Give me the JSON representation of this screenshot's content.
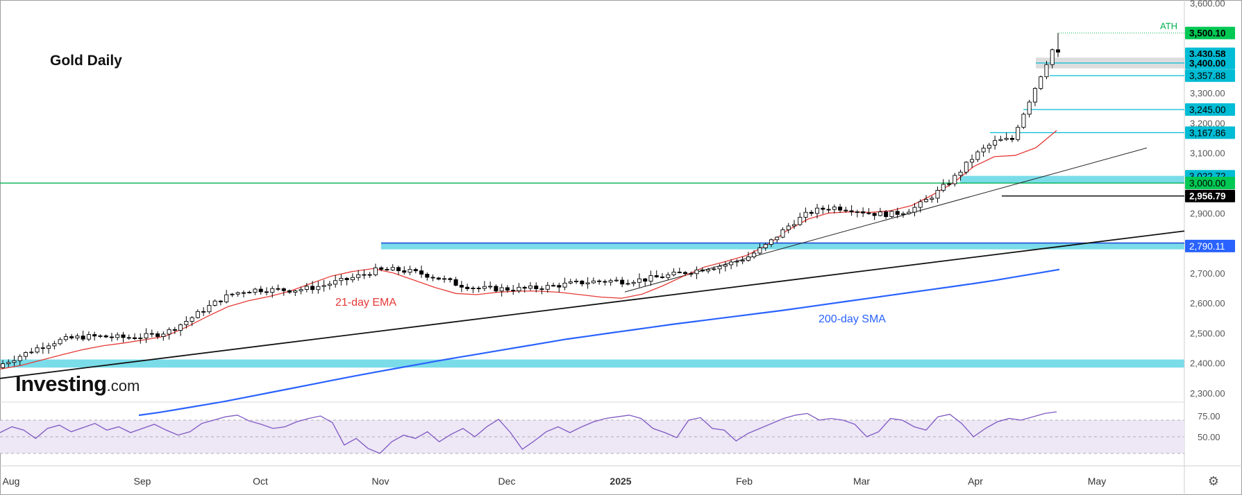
{
  "chart_title": "Gold Daily",
  "watermark": {
    "main": "Investing",
    "sub": ".com"
  },
  "annotations": {
    "ema": "21-day EMA",
    "sma": "200-day SMA",
    "ath": "ATH"
  },
  "colors": {
    "candle_up": "#ffffff",
    "candle_down": "#000000",
    "ema": "#e53935",
    "sma": "#2962ff",
    "rsi": "#7e57c2",
    "rsi_band": "#ede7f6",
    "support_zone": "#4dd0e1",
    "horizontal_3000": "#00b050",
    "label_cyan": "#00bcd4",
    "label_green": "#00c853",
    "label_black": "#000000"
  },
  "chart_data": {
    "type": "candlestick",
    "title": "Gold Daily",
    "x_labels": [
      "Aug",
      "Sep",
      "Oct",
      "Nov",
      "Dec",
      "2025",
      "Feb",
      "Mar",
      "Apr",
      "May"
    ],
    "price_axis": {
      "ticks": [
        "2,300.00",
        "2,400.00",
        "2,500.00",
        "2,600.00",
        "2,700.00",
        "2,800.00",
        "2,900.00",
        "3,000.00",
        "3,100.00",
        "3,200.00",
        "3,300.00",
        "3,400.00",
        "3,500.00",
        "3,600.00"
      ],
      "range": [
        2270,
        3610
      ]
    },
    "rsi_axis": {
      "ticks": [
        "75.00",
        "50.00"
      ],
      "range": [
        15,
        90
      ]
    },
    "price_labels": [
      {
        "value": 3500.1,
        "text": "3,500.10",
        "style": "green"
      },
      {
        "value": 3430.58,
        "text": "3,430.58",
        "style": "cyan"
      },
      {
        "value": 3400.0,
        "text": "3,400.00",
        "style": "cyan"
      },
      {
        "value": 3357.88,
        "text": "3,357.88",
        "style": "cyan"
      },
      {
        "value": 3245.0,
        "text": "3,245.00",
        "style": "cyan"
      },
      {
        "value": 3167.86,
        "text": "3,167.86",
        "style": "cyan"
      },
      {
        "value": 3022.72,
        "text": "3,022.72",
        "style": "cyan"
      },
      {
        "value": 3000.0,
        "text": "3,000.00",
        "style": "green"
      },
      {
        "value": 2956.79,
        "text": "2,956.79",
        "style": "black"
      },
      {
        "value": 2790.11,
        "text": "2,790.11",
        "style": "blue"
      }
    ],
    "zones": [
      {
        "from": 2385,
        "to": 2412
      },
      {
        "from": 2779,
        "to": 2800
      },
      {
        "from": 3000,
        "to": 3024
      },
      {
        "from": 3382,
        "to": 3418
      }
    ],
    "horizontal_line": 3000,
    "ema_21": [
      2380,
      2392,
      2410,
      2428,
      2445,
      2458,
      2467,
      2478,
      2490,
      2520,
      2555,
      2588,
      2608,
      2622,
      2640,
      2665,
      2690,
      2705,
      2715,
      2700,
      2676,
      2652,
      2632,
      2628,
      2636,
      2640,
      2640,
      2636,
      2628,
      2620,
      2616,
      2630,
      2658,
      2690,
      2720,
      2738,
      2758,
      2792,
      2842,
      2880,
      2900,
      2904,
      2902,
      2908,
      2925,
      2960,
      3000,
      3055,
      3088,
      3092,
      3118,
      3175
    ],
    "sma_200": [
      2226,
      2236,
      2248,
      2260,
      2272,
      2286,
      2300,
      2314,
      2328,
      2342,
      2356,
      2369,
      2382,
      2395,
      2408,
      2420,
      2432,
      2444,
      2456,
      2468,
      2480,
      2490,
      2500,
      2510,
      2520,
      2530,
      2539,
      2548,
      2557,
      2566,
      2575,
      2585,
      2595,
      2605,
      2615,
      2625,
      2635,
      2645,
      2655,
      2665,
      2676,
      2688,
      2700,
      2712
    ],
    "rsi": [
      55,
      62,
      58,
      48,
      60,
      64,
      56,
      61,
      66,
      58,
      62,
      55,
      60,
      65,
      58,
      52,
      56,
      66,
      70,
      74,
      76,
      69,
      65,
      60,
      62,
      68,
      72,
      75,
      67,
      40,
      48,
      36,
      30,
      44,
      52,
      48,
      56,
      44,
      53,
      60,
      50,
      62,
      71,
      55,
      35,
      45,
      56,
      62,
      55,
      62,
      68,
      72,
      74,
      76,
      72,
      60,
      55,
      49,
      70,
      73,
      60,
      58,
      45,
      54,
      60,
      66,
      72,
      76,
      78,
      70,
      72,
      70,
      65,
      50,
      56,
      72,
      70,
      62,
      58,
      74,
      77,
      66,
      50,
      60,
      68,
      72,
      70,
      74,
      78,
      80
    ]
  }
}
